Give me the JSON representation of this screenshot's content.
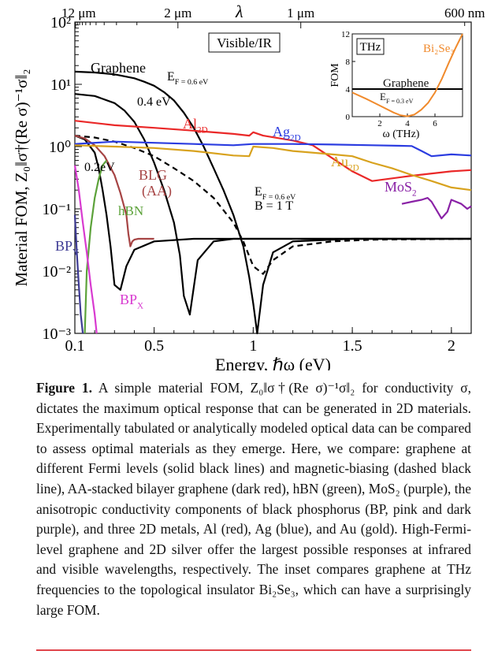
{
  "figure": {
    "caption_label": "Figure 1.",
    "caption_text": "A simple material FOM, Z₀‖σ†(Re σ)⁻¹σ‖₂ for conductivity σ, dictates the maximum optical response that can be generated in 2D materials. Experimentally tabulated or analytically modeled optical data can be compared to assess optimal materials as they emerge. Here, we compare: graphene at different Fermi levels (solid black lines) and magnetic-biasing (dashed black line), AA-stacked bilayer graphene (dark red), hBN (green), MoS₂ (purple), the anisotropic conductivity components of black phosphorus (BP, pink and dark purple), and three 2D metals, Al (red), Ag (blue), and Au (gold). High-Fermi-level graphene and 2D silver offer the largest possible responses at infrared and visible wavelengths, respectively. The inset compares graphene at THz frequencies to the topological insulator Bi₂Se₃, which can have a surprisingly large FOM."
  },
  "chart_data": [
    {
      "type": "line",
      "xlabel": "Energy, ℏω (eV)",
      "ylabel": "Material FOM, Z₀‖σ†(Re σ)⁻¹σ‖₂",
      "xlim": [
        0.1,
        2.1
      ],
      "ylim": [
        0.001,
        100
      ],
      "y_scale": "log",
      "x_ticks": [
        "0.1",
        "0.5",
        "1",
        "1.5",
        "2"
      ],
      "x_tick_values": [
        0.1,
        0.5,
        1.0,
        1.5,
        2.0
      ],
      "y_ticks": [
        "10²",
        "10¹",
        "10⁰",
        "10⁻¹",
        "10⁻²",
        "10⁻³"
      ],
      "y_tick_values": [
        100,
        10,
        1,
        0.1,
        0.01,
        0.001
      ],
      "top_axis_label": "λ",
      "top_ticks": [
        "12 μm",
        "2 μm",
        "1 μm",
        "600 nm"
      ],
      "top_tick_values": [
        0.1033,
        0.62,
        1.24,
        2.067
      ],
      "band_label": "Visible/IR",
      "series": [
        {
          "name": "Graphene",
          "label": "Graphene",
          "ef_label": "E_F = 0.6 eV",
          "color": "#000000",
          "dash": false,
          "x": [
            0.1,
            0.2,
            0.3,
            0.4,
            0.45,
            0.5,
            0.55,
            0.6,
            0.65,
            0.7,
            0.75,
            0.8,
            0.85,
            0.9,
            0.95,
            0.98,
            1.0,
            1.02,
            1.05,
            1.1,
            1.2,
            1.5,
            2.1
          ],
          "y": [
            16,
            15.5,
            14.5,
            12.5,
            11,
            9.5,
            7.5,
            5.5,
            3.5,
            2,
            1,
            0.45,
            0.2,
            0.08,
            0.025,
            0.008,
            0.003,
            0.001,
            0.006,
            0.02,
            0.03,
            0.033,
            0.033
          ]
        },
        {
          "name": "Graphene 0.4 eV",
          "label": "0.4 eV",
          "color": "#000000",
          "dash": false,
          "x": [
            0.1,
            0.2,
            0.3,
            0.35,
            0.4,
            0.45,
            0.5,
            0.55,
            0.6,
            0.63,
            0.65,
            0.68,
            0.72,
            0.8,
            0.9,
            1.2,
            2.1
          ],
          "y": [
            7,
            6.5,
            5,
            3.8,
            2.5,
            1.3,
            0.55,
            0.2,
            0.06,
            0.018,
            0.004,
            0.002,
            0.015,
            0.03,
            0.033,
            0.033,
            0.033
          ]
        },
        {
          "name": "Graphene 0.2 eV",
          "label": "0.2eV",
          "color": "#000000",
          "dash": false,
          "x": [
            0.1,
            0.15,
            0.2,
            0.22,
            0.24,
            0.26,
            0.28,
            0.3,
            0.33,
            0.36,
            0.4,
            0.5,
            0.7,
            2.1
          ],
          "y": [
            1.5,
            1.3,
            0.8,
            0.45,
            0.2,
            0.08,
            0.025,
            0.006,
            0.005,
            0.012,
            0.022,
            0.03,
            0.033,
            0.033
          ]
        },
        {
          "name": "Graphene B = 1 T",
          "label": "B = 1 T",
          "ef_label": "E_F = 0.6 eV",
          "color": "#000000",
          "dash": true,
          "x": [
            0.1,
            0.2,
            0.3,
            0.4,
            0.5,
            0.6,
            0.7,
            0.8,
            0.9,
            0.95,
            1.0,
            1.05,
            1.1,
            1.2,
            1.4,
            1.6,
            2.1
          ],
          "y": [
            1.5,
            1.4,
            1.2,
            0.95,
            0.7,
            0.45,
            0.28,
            0.15,
            0.06,
            0.03,
            0.012,
            0.009,
            0.015,
            0.025,
            0.03,
            0.032,
            0.033
          ]
        },
        {
          "name": "BLG (AA)",
          "label": "BLG (AA)",
          "color": "#a64444",
          "dash": false,
          "x": [
            0.1,
            0.15,
            0.2,
            0.25,
            0.3,
            0.33,
            0.36,
            0.37,
            0.38,
            0.39,
            0.4,
            0.42,
            0.45,
            0.5
          ],
          "y": [
            1.5,
            1.35,
            1.05,
            0.7,
            0.35,
            0.18,
            0.08,
            0.04,
            0.025,
            0.03,
            0.032,
            0.033,
            0.033,
            0.033
          ]
        },
        {
          "name": "hBN",
          "label": "hBN",
          "color": "#5ca23a",
          "dash": false,
          "x": [
            0.15,
            0.16,
            0.18,
            0.2,
            0.22,
            0.24,
            0.26
          ],
          "y": [
            0.001,
            0.01,
            0.05,
            0.15,
            0.3,
            0.5,
            0.6
          ]
        },
        {
          "name": "BP_Y",
          "label": "BP_Y",
          "color": "#3f3c95",
          "dash": false,
          "x": [
            0.1,
            0.11,
            0.12,
            0.13,
            0.14
          ],
          "y": [
            0.08,
            0.02,
            0.006,
            0.002,
            0.001
          ]
        },
        {
          "name": "BP_X",
          "label": "BP_X",
          "color": "#d83ad0",
          "dash": false,
          "x": [
            0.1,
            0.12,
            0.14,
            0.16,
            0.18,
            0.2,
            0.21
          ],
          "y": [
            0.5,
            0.2,
            0.06,
            0.02,
            0.006,
            0.002,
            0.001
          ]
        },
        {
          "name": "Al_2D",
          "label": "Al_2D",
          "color": "#ea2828",
          "dash": false,
          "x": [
            0.1,
            0.3,
            0.5,
            0.7,
            0.9,
            0.98,
            1.0,
            1.05,
            1.2,
            1.3,
            1.4,
            1.5,
            1.6,
            1.8,
            2.0,
            2.1
          ],
          "y": [
            2.6,
            2.2,
            2.0,
            1.8,
            1.6,
            1.5,
            1.7,
            1.5,
            1.25,
            1.05,
            0.65,
            0.4,
            0.28,
            0.34,
            0.4,
            0.42
          ]
        },
        {
          "name": "Ag_2D",
          "label": "Ag_2D",
          "color": "#2b3ce0",
          "dash": false,
          "x": [
            0.1,
            0.3,
            0.5,
            0.7,
            0.9,
            1.0,
            1.2,
            1.4,
            1.6,
            1.8,
            1.85,
            1.9,
            2.0,
            2.1
          ],
          "y": [
            1.1,
            1.2,
            1.15,
            1.1,
            1.05,
            1.1,
            1.1,
            1.08,
            1.05,
            1.02,
            0.85,
            0.7,
            0.75,
            0.72
          ]
        },
        {
          "name": "Au_2D",
          "label": "Au_2D",
          "color": "#d8a21e",
          "dash": false,
          "x": [
            0.1,
            0.3,
            0.5,
            0.7,
            0.9,
            0.98,
            1.0,
            1.1,
            1.2,
            1.4,
            1.5,
            1.6,
            1.7,
            1.8,
            1.9,
            2.0,
            2.1
          ],
          "y": [
            1.05,
            1.0,
            0.95,
            0.85,
            0.72,
            0.7,
            1.0,
            0.95,
            0.85,
            0.75,
            0.7,
            0.55,
            0.45,
            0.35,
            0.28,
            0.22,
            0.2
          ]
        },
        {
          "name": "MoS_2",
          "label": "MoS_2",
          "color": "#8a22a6",
          "dash": false,
          "x": [
            1.75,
            1.8,
            1.85,
            1.88,
            1.9,
            1.95,
            1.98,
            2.0,
            2.05,
            2.08,
            2.1
          ],
          "y": [
            0.12,
            0.13,
            0.14,
            0.15,
            0.13,
            0.07,
            0.09,
            0.14,
            0.12,
            0.1,
            0.11
          ]
        }
      ]
    },
    {
      "type": "line",
      "title": "THz",
      "xlabel": "ω (THz)",
      "ylabel": "FOM",
      "xlim": [
        0,
        8
      ],
      "ylim": [
        0,
        12
      ],
      "x_ticks": [
        "2",
        "4",
        "6"
      ],
      "x_tick_values": [
        2,
        4,
        6
      ],
      "y_ticks": [
        "0",
        "4",
        "8",
        "12"
      ],
      "y_tick_values": [
        0,
        4,
        8,
        12
      ],
      "series": [
        {
          "name": "Graphene",
          "label": "Graphene",
          "ef_label": "E_F = 0.3 eV",
          "color": "#000000",
          "x": [
            0,
            8
          ],
          "y": [
            4,
            4
          ]
        },
        {
          "name": "Bi2Se3",
          "label": "Bi₂Se₃",
          "color": "#f08a2c",
          "x": [
            0,
            1,
            2,
            3,
            3.5,
            4,
            4.5,
            5,
            5.5,
            6,
            6.5,
            7,
            7.5,
            8
          ],
          "y": [
            3.5,
            2.6,
            1.6,
            0.6,
            0.2,
            0.05,
            0.3,
            1.0,
            2.0,
            3.5,
            5.5,
            7.8,
            10,
            12
          ]
        }
      ]
    }
  ]
}
